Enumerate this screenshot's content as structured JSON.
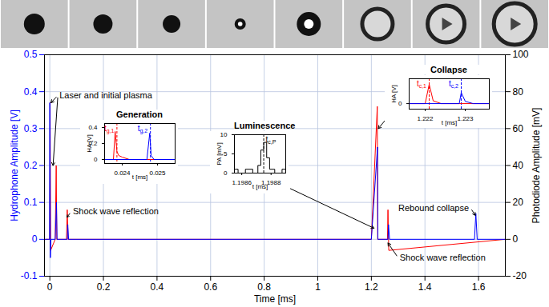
{
  "chart_data": {
    "type": "line",
    "xlabel": "Time [ms]",
    "ylabel": "Hydrophone Amplitude [V]",
    "y2label": "Photodiode Amplitude [mV]",
    "xlim": [
      -0.02,
      1.7
    ],
    "xticks": [
      0,
      0.2,
      0.4,
      0.6,
      0.8,
      1,
      1.2,
      1.4,
      1.6
    ],
    "ylim": [
      -0.1,
      0.5
    ],
    "yticks": [
      -0.1,
      0,
      0.1,
      0.2,
      0.3,
      0.4,
      0.5
    ],
    "y2lim": [
      -20,
      100
    ],
    "y2ticks": [
      -20,
      0,
      20,
      40,
      60,
      80,
      100
    ],
    "grid": true,
    "series": [
      {
        "color": "#ff0000",
        "x": [
          -0.02,
          0,
          0.001,
          0.003,
          0.02,
          0.0238,
          0.026,
          0.062,
          0.065,
          0.068,
          1.2,
          1.2221,
          1.2235,
          1.26,
          1.262,
          1.265,
          1.7
        ],
        "values": [
          0,
          0,
          0.37,
          -0.03,
          0,
          0.2,
          0,
          0,
          0.08,
          0,
          0,
          0.36,
          0,
          0,
          0.08,
          -0.03,
          0
        ]
      },
      {
        "color": "#0000ff",
        "x": [
          -0.02,
          -0.001,
          0,
          0.002,
          0.004,
          0.02,
          0.0248,
          0.027,
          0.065,
          0.067,
          0.07,
          1.2,
          1.2229,
          1.2245,
          1.262,
          1.264,
          1.268,
          1.585,
          1.59,
          1.595,
          1.7
        ],
        "values": [
          0,
          0,
          0.37,
          -0.05,
          0,
          0,
          0.1,
          0,
          0,
          0.04,
          0,
          0,
          0.25,
          0,
          0,
          0.04,
          0,
          0,
          0.07,
          0,
          0
        ]
      }
    ],
    "annotations": [
      {
        "text": "Laser and initial plasma",
        "x": 0.03,
        "y": 0.39,
        "arrows": [
          [
            0.004,
            0.37
          ],
          [
            0.012,
            0.2
          ]
        ]
      },
      {
        "text": "Shock wave reflection",
        "x": 0.08,
        "y": 0.075,
        "arrows": [
          [
            0.064,
            0.06
          ]
        ]
      },
      {
        "text": "Shock wave reflection",
        "x": 1.3,
        "y": -0.05,
        "arrows": [
          [
            1.262,
            -0.01
          ]
        ]
      },
      {
        "text": "Rebound collapse",
        "x": 1.57,
        "y": 0.085,
        "arrows": [
          [
            1.588,
            0.065
          ]
        ]
      }
    ],
    "inset_arrows": [
      {
        "from": [
          0.89,
          0.14
        ],
        "to": [
          1.21,
          0.03
        ]
      },
      {
        "from": [
          1.26,
          0.33
        ],
        "to": [
          1.226,
          0.3
        ]
      }
    ],
    "insets": [
      {
        "title": "Generation",
        "xlabel": "t [ms]",
        "ylabel": "HA [V]",
        "xlim": [
          0.0235,
          0.0255
        ],
        "xticks": [
          0.024,
          0.025
        ],
        "ylim": [
          -0.05,
          0.45
        ],
        "yticks": [
          0,
          0.2,
          0.4
        ],
        "series": [
          {
            "color": "#ff0000",
            "x": [
              0.0235,
              0.02375,
              0.0238,
              0.02385,
              0.0239,
              0.024,
              0.0242,
              0.0255
            ],
            "values": [
              0,
              0,
              0.35,
              0.1,
              0.05,
              0.03,
              0,
              0
            ]
          },
          {
            "color": "#0000ff",
            "x": [
              0.0235,
              0.0247,
              0.02478,
              0.02482,
              0.0249,
              0.0255
            ],
            "values": [
              0,
              0,
              0.33,
              0.05,
              0,
              0
            ]
          }
        ],
        "markers": [
          {
            "x": 0.02385,
            "color": "#ff0000",
            "line_style": "dashed",
            "label": {
              "main": "t",
              "sub": "g,1"
            }
          },
          {
            "x": 0.0248,
            "color": "#0000ff",
            "line_style": "dashed",
            "label": {
              "main": "t",
              "sub": "g,2"
            }
          }
        ]
      },
      {
        "title": "Luminescence",
        "xlabel": "t [ms]",
        "ylabel": "PA [mV]",
        "xlim": [
          1.19855,
          1.1989
        ],
        "xticks": [
          1.1986,
          1.1988
        ],
        "ylim": [
          0,
          10
        ],
        "yticks": [
          0,
          5,
          10
        ],
        "series": [
          {
            "color": "#000000",
            "x": [
              1.19855,
              1.1986,
              1.19865,
              1.1987,
              1.19872,
              1.19874,
              1.19876,
              1.19878,
              1.1988,
              1.19885,
              1.1989
            ],
            "values": [
              1,
              0,
              1,
              0,
              2,
              6,
              8,
              4,
              1,
              0,
              1
            ]
          }
        ],
        "markers": [
          {
            "x": 1.19875,
            "color": "#000000",
            "line_style": "dashed",
            "label": {
              "main": "t",
              "sub": "c,P"
            }
          }
        ]
      },
      {
        "title": "Collapse",
        "xlabel": "t [ms]",
        "ylabel": "HA [V]",
        "xlim": [
          1.2216,
          1.2236
        ],
        "xticks": [
          1.222,
          1.223
        ],
        "ylim": [
          -0.1,
          0.45
        ],
        "yticks": [
          0
        ],
        "series": [
          {
            "color": "#ff0000",
            "x": [
              1.2216,
              1.222,
              1.2221,
              1.2222,
              1.2224,
              1.2236
            ],
            "values": [
              0,
              0,
              0.35,
              0.05,
              0,
              0
            ]
          },
          {
            "color": "#0000ff",
            "x": [
              1.2216,
              1.22285,
              1.2229,
              1.223,
              1.2232,
              1.2236
            ],
            "values": [
              0,
              0,
              0.2,
              0.04,
              0,
              0
            ]
          }
        ],
        "markers": [
          {
            "x": 1.2221,
            "color": "#ff0000",
            "line_style": "dashed",
            "label": {
              "main": "t",
              "sub": "c,1"
            }
          },
          {
            "x": 1.2229,
            "color": "#0000ff",
            "line_style": "dashed",
            "label": {
              "main": "t",
              "sub": "c,2"
            }
          }
        ]
      }
    ]
  }
}
